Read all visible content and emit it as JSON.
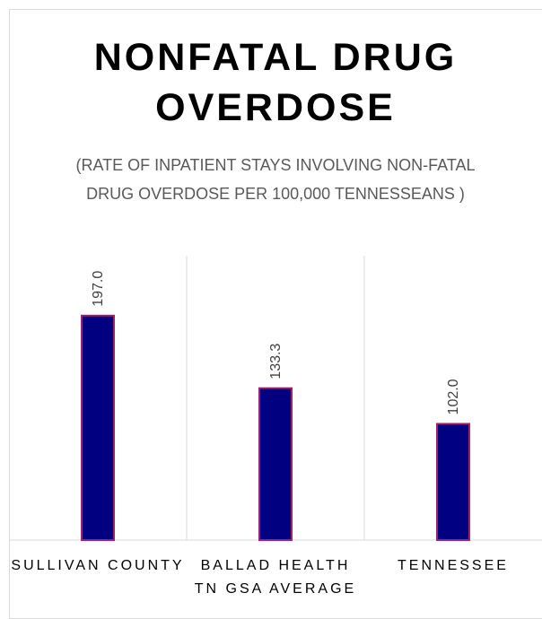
{
  "chart_data": {
    "type": "bar",
    "title": "NONFATAL DRUG OVERDOSE",
    "subtitle": "(RATE OF INPATIENT STAYS INVOLVING NON-FATAL DRUG OVERDOSE PER 100,000 TENNESSEANS )",
    "categories": [
      "SULLIVAN COUNTY",
      "BALLAD HEALTH TN GSA AVERAGE",
      "TENNESSEE"
    ],
    "values": [
      197.0,
      133.3,
      102.0
    ],
    "data_labels": [
      "197.0",
      "133.3",
      "102.0"
    ],
    "xlabel": "",
    "ylabel": "",
    "ylim": [
      0,
      250
    ],
    "grid": false,
    "legend": "none",
    "bar_color": "#000080",
    "bar_border_color": "#a0206e"
  }
}
